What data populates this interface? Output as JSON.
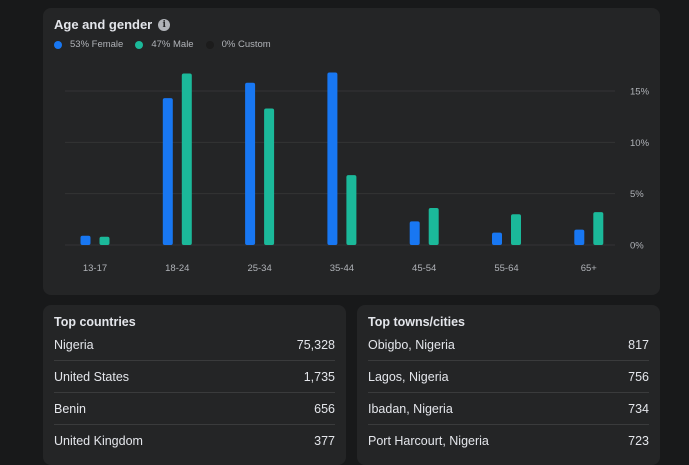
{
  "age_gender": {
    "title": "Age and gender",
    "info_icon": "info-icon",
    "legend": [
      {
        "label": "53% Female",
        "color": "#1877f2"
      },
      {
        "label": "47% Male",
        "color": "#1bb99a"
      },
      {
        "label": "0% Custom",
        "color": "#1c1c1c"
      }
    ]
  },
  "chart_data": {
    "type": "bar",
    "categories": [
      "13-17",
      "18-24",
      "25-34",
      "35-44",
      "45-54",
      "55-64",
      "65+"
    ],
    "series": [
      {
        "name": "Female",
        "color": "#1877f2",
        "values": [
          0.9,
          14.3,
          15.8,
          16.8,
          2.3,
          1.2,
          1.5
        ]
      },
      {
        "name": "Male",
        "color": "#1bb99a",
        "values": [
          0.8,
          16.7,
          13.3,
          6.8,
          3.6,
          3.0,
          3.2
        ]
      }
    ],
    "yticks": [
      "0%",
      "5%",
      "10%",
      "15%"
    ],
    "ytick_values": [
      0,
      5,
      10,
      15
    ],
    "ylim": [
      0,
      15
    ],
    "grid": true
  },
  "top_countries": {
    "title": "Top countries",
    "rows": [
      {
        "name": "Nigeria",
        "value": "75,328"
      },
      {
        "name": "United States",
        "value": "1,735"
      },
      {
        "name": "Benin",
        "value": "656"
      },
      {
        "name": "United Kingdom",
        "value": "377"
      }
    ]
  },
  "top_cities": {
    "title": "Top towns/cities",
    "rows": [
      {
        "name": "Obigbo, Nigeria",
        "value": "817"
      },
      {
        "name": "Lagos, Nigeria",
        "value": "756"
      },
      {
        "name": "Ibadan, Nigeria",
        "value": "734"
      },
      {
        "name": "Port Harcourt, Nigeria",
        "value": "723"
      }
    ]
  }
}
